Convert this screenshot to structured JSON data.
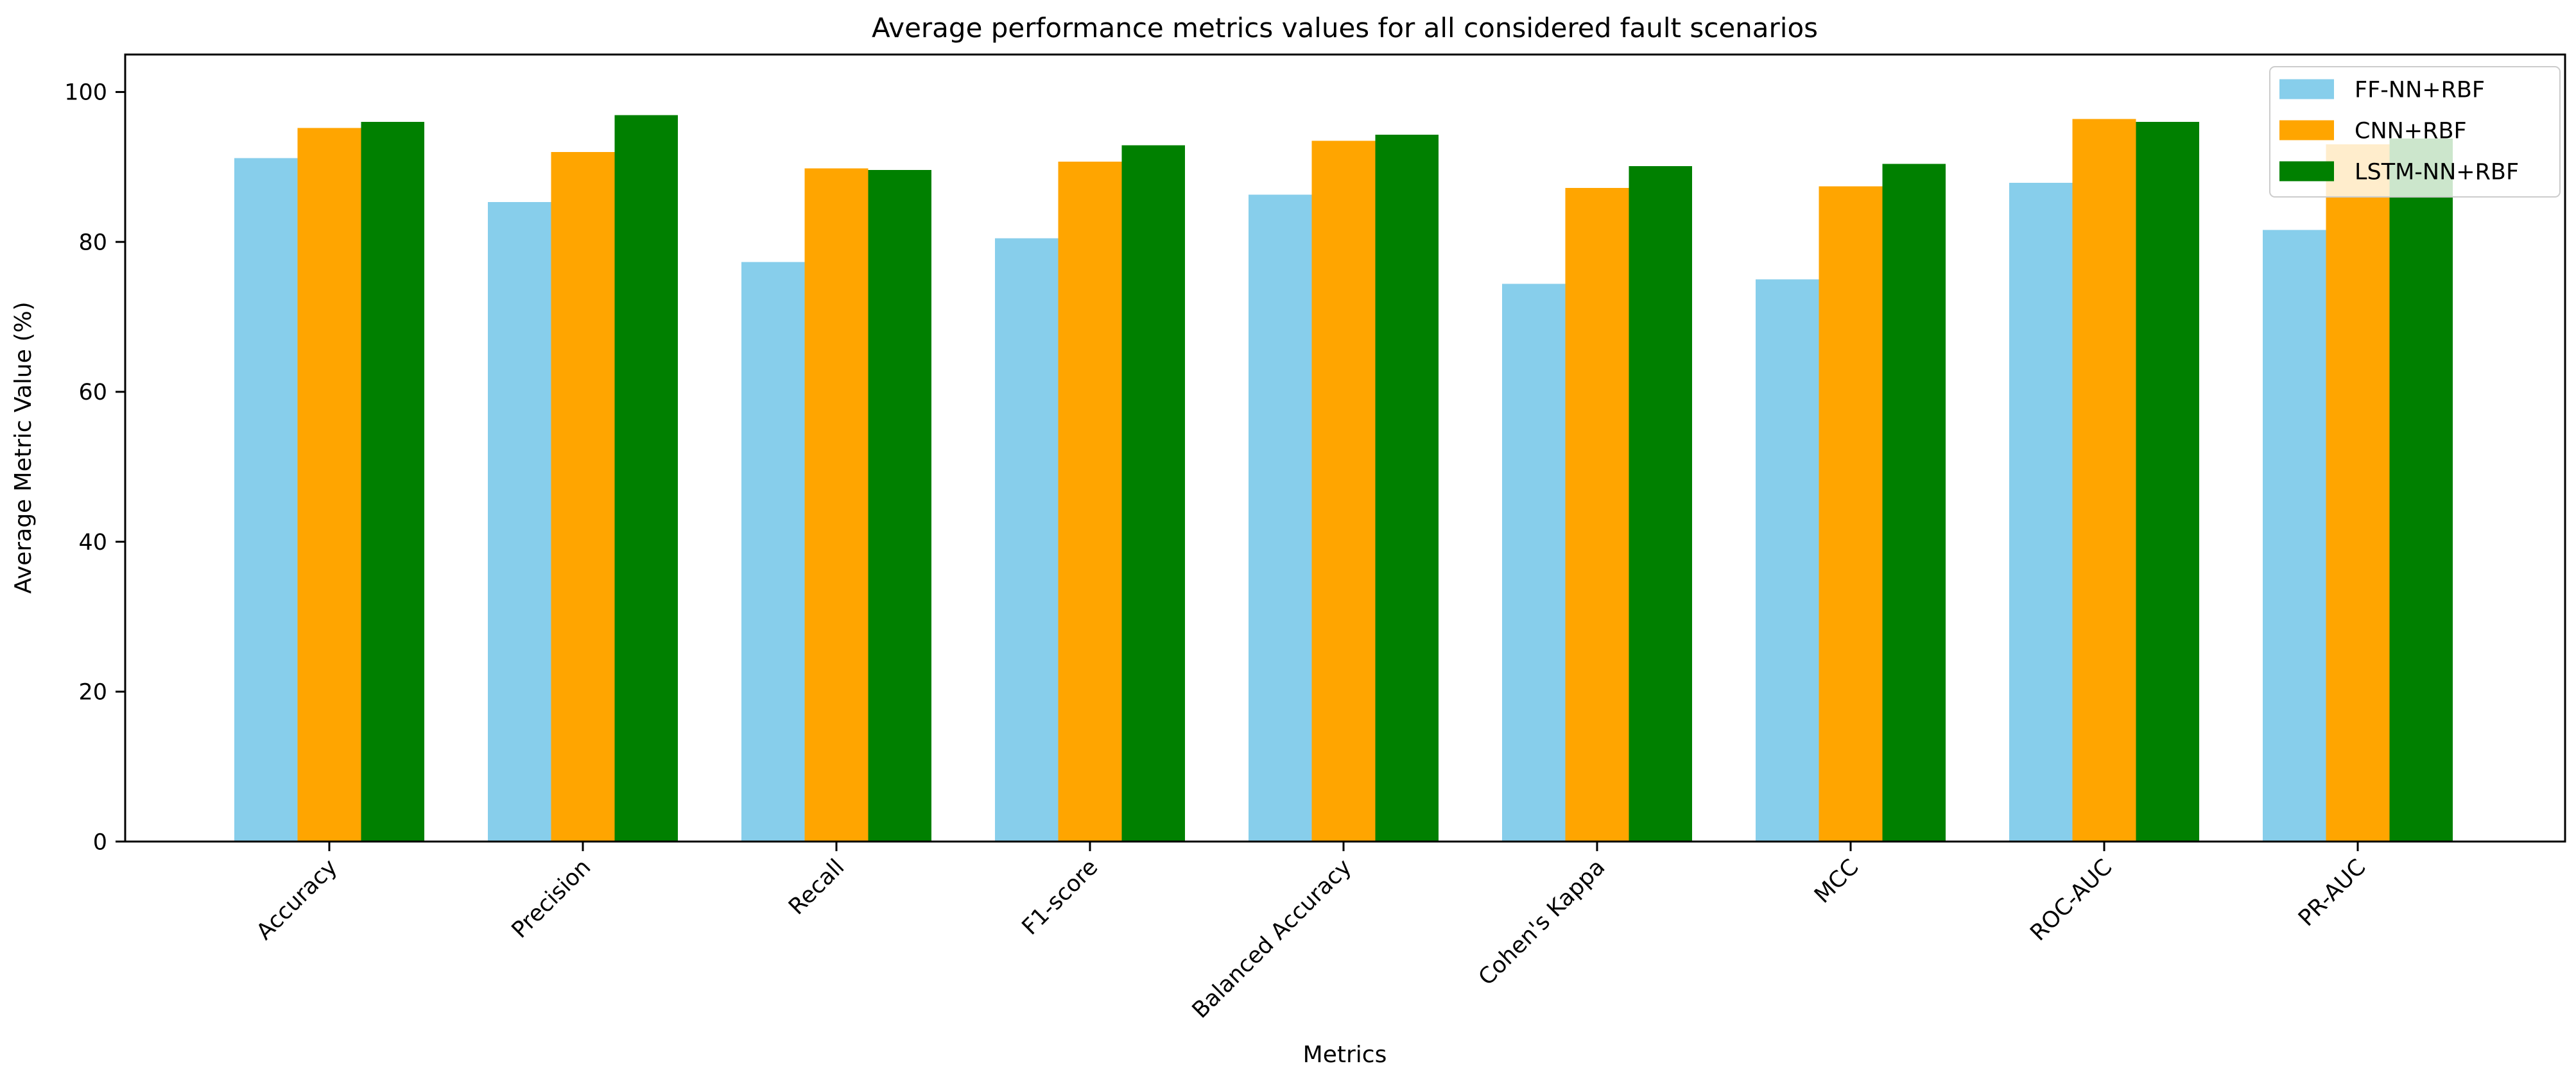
{
  "figure": {
    "background": "#ffffff"
  },
  "chart_data": {
    "type": "bar",
    "title": "Average performance metrics values for all considered fault scenarios",
    "xlabel": "Metrics",
    "ylabel": "Average Metric Value (%)",
    "categories": [
      "Accuracy",
      "Precision",
      "Recall",
      "F1-score",
      "Balanced Accuracy",
      "Cohen's Kappa",
      "MCC",
      "ROC-AUC",
      "PR-AUC"
    ],
    "series": [
      {
        "name": "FF-NN+RBF",
        "color": "#87CEEB",
        "values": [
          91.2,
          85.3,
          77.3,
          80.5,
          86.3,
          74.4,
          75.0,
          87.9,
          81.6
        ]
      },
      {
        "name": "CNN+RBF",
        "color": "#FFA500",
        "values": [
          95.2,
          92.0,
          89.8,
          90.7,
          93.5,
          87.2,
          87.4,
          96.4,
          93.0
        ]
      },
      {
        "name": "LSTM-NN+RBF",
        "color": "#008000",
        "values": [
          96.0,
          96.9,
          89.6,
          92.9,
          94.3,
          90.1,
          90.4,
          96.0,
          93.8
        ]
      }
    ],
    "ylim": [
      0,
      105
    ],
    "yticks": [
      0,
      20,
      40,
      60,
      80,
      100
    ],
    "bar_width_ratio": 0.25,
    "grid": false,
    "legend_position": "upper right",
    "axis_color": "#000000",
    "text_color": "#000000",
    "legend_border_color": "#cccccc",
    "legend_background": "#ffffff"
  }
}
